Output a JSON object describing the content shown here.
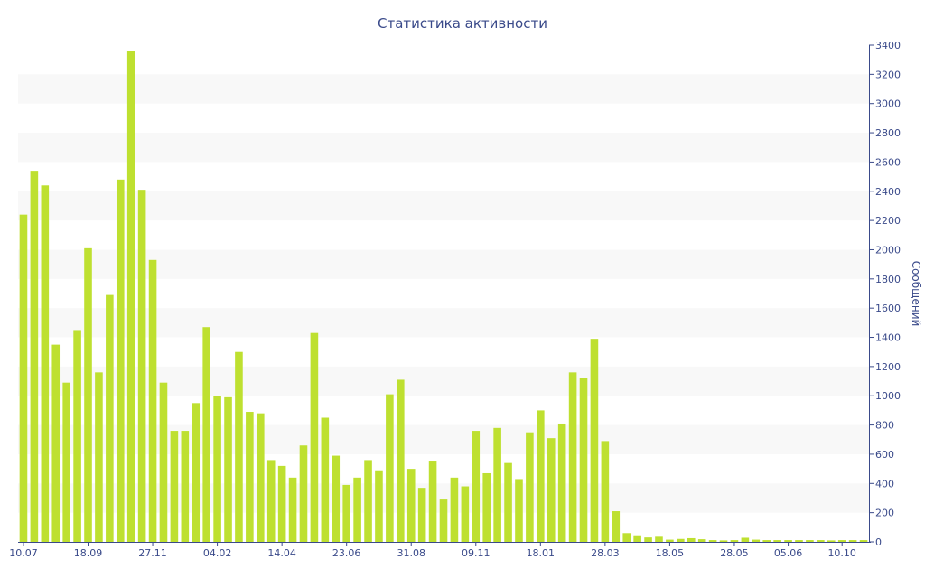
{
  "chart_data": {
    "type": "bar",
    "title": "Статистика активности",
    "xlabel": "",
    "ylabel": "Сообщений",
    "y_axis_side": "right",
    "ylim": [
      0,
      3400
    ],
    "yticks": [
      0,
      200,
      400,
      600,
      800,
      1000,
      1200,
      1400,
      1600,
      1800,
      2000,
      2200,
      2400,
      2600,
      2800,
      3000,
      3200,
      3400
    ],
    "x_tick_labels": [
      "10.07",
      "18.09",
      "27.11",
      "04.02",
      "14.04",
      "23.06",
      "31.08",
      "09.11",
      "18.01",
      "28.03",
      "18.05",
      "28.05",
      "05.06",
      "10.10"
    ],
    "x_tick_bar_index": [
      0,
      6,
      12,
      18,
      24,
      30,
      36,
      42,
      48,
      54,
      60,
      66,
      71,
      76
    ],
    "values": [
      2240,
      2540,
      2440,
      1350,
      1090,
      1450,
      2010,
      1160,
      1690,
      2480,
      3360,
      2410,
      1930,
      1090,
      760,
      760,
      950,
      1470,
      1000,
      990,
      1300,
      890,
      880,
      560,
      520,
      440,
      660,
      1430,
      850,
      590,
      390,
      440,
      560,
      490,
      1010,
      1110,
      500,
      370,
      550,
      290,
      440,
      380,
      760,
      470,
      780,
      540,
      430,
      750,
      900,
      710,
      810,
      1160,
      1120,
      1390,
      690,
      210,
      60,
      45,
      30,
      35,
      15,
      20,
      25,
      18,
      12,
      10,
      12,
      28,
      15,
      12,
      12,
      12,
      12,
      12,
      12,
      10,
      12,
      12,
      12
    ],
    "grid": "alternating horizontal bands",
    "colors": {
      "bar": "#bee030",
      "band": "#f8f8f8",
      "axis": "#3a4a8a",
      "text": "#3a4a8a"
    }
  }
}
